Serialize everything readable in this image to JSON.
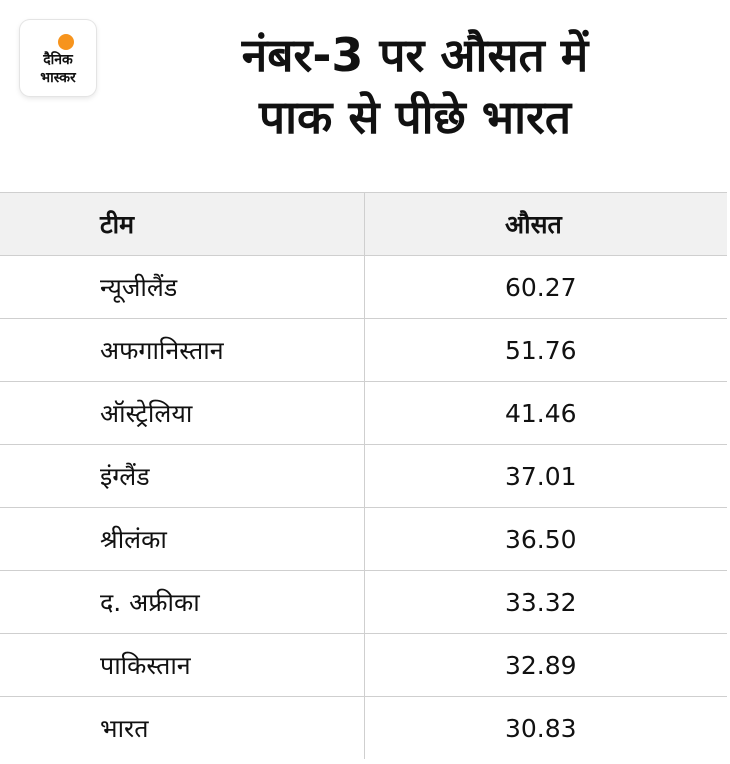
{
  "brand": {
    "line1": "दैनिक",
    "line2": "भास्कर",
    "accent": "#f7941d"
  },
  "header": {
    "title_line1": "नंबर-3 पर औसत में",
    "title_line2": "पाक से पीछे भारत"
  },
  "chart_data": {
    "type": "table",
    "columns": [
      "टीम",
      "औसत"
    ],
    "rows": [
      {
        "team": "न्यूजीलैंड",
        "average": "60.27"
      },
      {
        "team": "अफगानिस्तान",
        "average": "51.76"
      },
      {
        "team": "ऑस्ट्रेलिया",
        "average": "41.46"
      },
      {
        "team": "इंग्लैंड",
        "average": "37.01"
      },
      {
        "team": "श्रीलंका",
        "average": "36.50"
      },
      {
        "team": "द. अफ्रीका",
        "average": "33.32"
      },
      {
        "team": "पाकिस्तान",
        "average": "32.89"
      },
      {
        "team": "भारत",
        "average": "30.83"
      }
    ]
  }
}
